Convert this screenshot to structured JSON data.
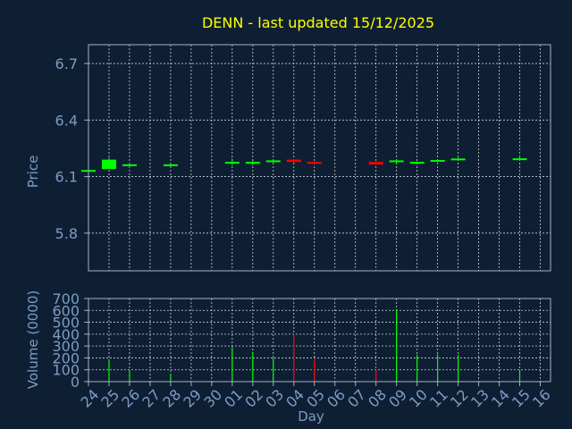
{
  "colors": {
    "background": "#0f1f33",
    "title": "#ffff00",
    "axis_text": "#7b9cc4",
    "frame": "#9fb0c8",
    "grid": "#c8d0dc",
    "up": "#00ff00",
    "down": "#ff0000"
  },
  "chart_data": [
    {
      "type": "candlestick",
      "title": "DENN - last updated 15/12/2025",
      "ylabel": "Price",
      "xlabel": "",
      "ylim": [
        5.6,
        6.8
      ],
      "yticks": [
        5.8,
        6.1,
        6.4,
        6.7
      ],
      "grid": true,
      "candles": [
        {
          "day": "24",
          "open": 6.135,
          "close": 6.135,
          "high": 6.14,
          "low": 6.13,
          "dir": "up"
        },
        {
          "day": "25",
          "open": 6.14,
          "close": 6.19,
          "high": 6.2,
          "low": 6.14,
          "dir": "up"
        },
        {
          "day": "26",
          "open": 6.16,
          "close": 6.165,
          "high": 6.17,
          "low": 6.16,
          "dir": "up"
        },
        {
          "day": "28",
          "open": 6.16,
          "close": 6.165,
          "high": 6.17,
          "low": 6.155,
          "dir": "up"
        },
        {
          "day": "01",
          "open": 6.17,
          "close": 6.178,
          "high": 6.195,
          "low": 6.16,
          "dir": "up"
        },
        {
          "day": "02",
          "open": 6.172,
          "close": 6.178,
          "high": 6.185,
          "low": 6.16,
          "dir": "up"
        },
        {
          "day": "03",
          "open": 6.18,
          "close": 6.186,
          "high": 6.19,
          "low": 6.17,
          "dir": "up"
        },
        {
          "day": "04",
          "open": 6.19,
          "close": 6.178,
          "high": 6.195,
          "low": 6.175,
          "dir": "down"
        },
        {
          "day": "05",
          "open": 6.178,
          "close": 6.168,
          "high": 6.18,
          "low": 6.168,
          "dir": "down"
        },
        {
          "day": "08",
          "open": 6.178,
          "close": 6.164,
          "high": 6.18,
          "low": 6.164,
          "dir": "down"
        },
        {
          "day": "09",
          "open": 6.178,
          "close": 6.186,
          "high": 6.19,
          "low": 6.165,
          "dir": "up"
        },
        {
          "day": "10",
          "open": 6.172,
          "close": 6.178,
          "high": 6.18,
          "low": 6.168,
          "dir": "up"
        },
        {
          "day": "11",
          "open": 6.182,
          "close": 6.188,
          "high": 6.19,
          "low": 6.178,
          "dir": "up"
        },
        {
          "day": "12",
          "open": 6.19,
          "close": 6.196,
          "high": 6.2,
          "low": 6.185,
          "dir": "up"
        },
        {
          "day": "15",
          "open": 6.19,
          "close": 6.197,
          "high": 6.21,
          "low": 6.185,
          "dir": "up"
        }
      ]
    },
    {
      "type": "bar",
      "ylabel": "Volume (0000)",
      "xlabel": "Day",
      "ylim": [
        0,
        700
      ],
      "yticks": [
        0,
        100,
        200,
        300,
        400,
        500,
        600,
        700
      ],
      "grid": true,
      "categories": [
        "24",
        "25",
        "26",
        "27",
        "28",
        "29",
        "30",
        "01",
        "02",
        "03",
        "04",
        "05",
        "06",
        "07",
        "08",
        "09",
        "10",
        "11",
        "12",
        "13",
        "14",
        "15",
        "16"
      ],
      "bars": [
        {
          "day": "24",
          "value": 20,
          "dir": "up"
        },
        {
          "day": "25",
          "value": 180,
          "dir": "up"
        },
        {
          "day": "26",
          "value": 95,
          "dir": "up"
        },
        {
          "day": "28",
          "value": 60,
          "dir": "up"
        },
        {
          "day": "01",
          "value": 290,
          "dir": "up"
        },
        {
          "day": "02",
          "value": 250,
          "dir": "up"
        },
        {
          "day": "03",
          "value": 200,
          "dir": "up"
        },
        {
          "day": "04",
          "value": 400,
          "dir": "down"
        },
        {
          "day": "05",
          "value": 185,
          "dir": "down"
        },
        {
          "day": "08",
          "value": 100,
          "dir": "down"
        },
        {
          "day": "09",
          "value": 610,
          "dir": "up"
        },
        {
          "day": "10",
          "value": 225,
          "dir": "up"
        },
        {
          "day": "11",
          "value": 230,
          "dir": "up"
        },
        {
          "day": "12",
          "value": 225,
          "dir": "up"
        },
        {
          "day": "15",
          "value": 100,
          "dir": "up"
        }
      ]
    }
  ]
}
